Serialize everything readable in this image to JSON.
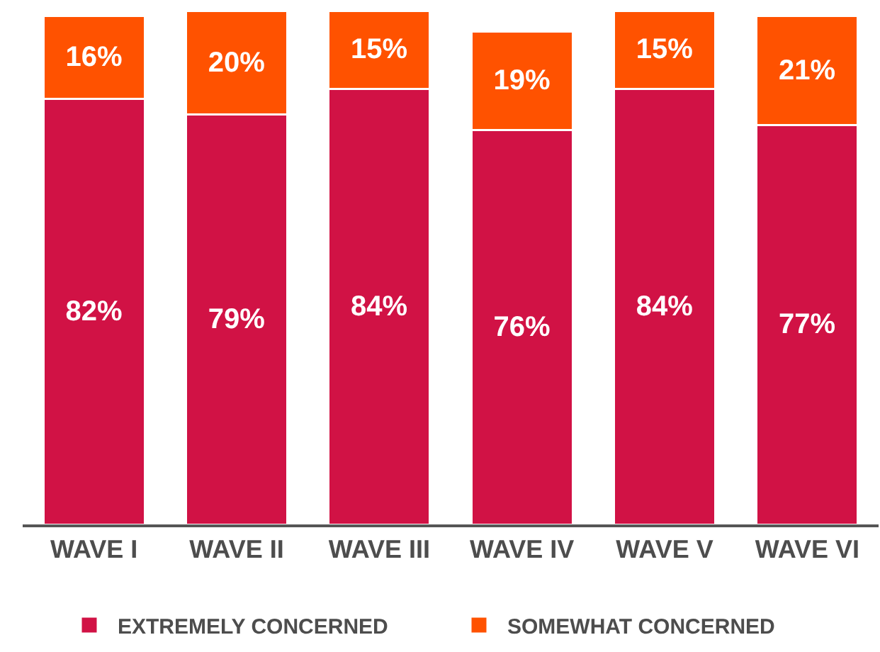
{
  "chart_data": {
    "type": "bar",
    "stacked": true,
    "categories": [
      "WAVE I",
      "WAVE II",
      "WAVE III",
      "WAVE IV",
      "WAVE V",
      "WAVE VI"
    ],
    "series": [
      {
        "name": "EXTREMELY CONCERNED",
        "color": "#d11245",
        "values": [
          82,
          79,
          84,
          76,
          84,
          77
        ],
        "value_labels": [
          "82%",
          "79%",
          "84%",
          "76%",
          "84%",
          "77%"
        ]
      },
      {
        "name": "SOMEWHAT CONCERNED",
        "color": "#ff5200",
        "values": [
          16,
          20,
          15,
          19,
          15,
          21
        ],
        "value_labels": [
          "16%",
          "20%",
          "15%",
          "19%",
          "15%",
          "21%"
        ]
      }
    ],
    "ylim": [
      0,
      100
    ],
    "tick_labels": "x",
    "legend": "bottom"
  }
}
